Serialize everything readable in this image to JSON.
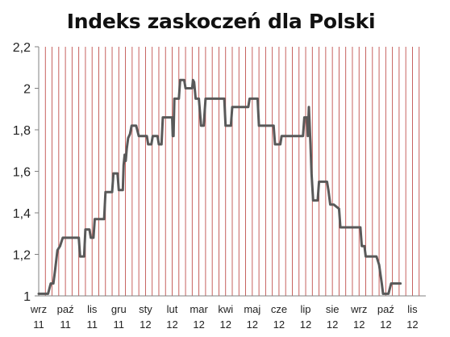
{
  "chart_data": {
    "type": "line",
    "title": "Indeks zaskoczeń dla Polski",
    "xlabel": "",
    "ylabel": "",
    "ylim": [
      1,
      2.2
    ],
    "y_ticks": [
      1,
      1.2,
      1.4,
      1.6,
      1.8,
      2,
      2.2
    ],
    "y_tick_labels": [
      "1",
      "1,2",
      "1,4",
      "1,6",
      "1,8",
      "2",
      "2,2"
    ],
    "x_tick_labels": [
      {
        "month": "wrz",
        "year": "11"
      },
      {
        "month": "paź",
        "year": "11"
      },
      {
        "month": "lis",
        "year": "11"
      },
      {
        "month": "gru",
        "year": "11"
      },
      {
        "month": "sty",
        "year": "12"
      },
      {
        "month": "lut",
        "year": "12"
      },
      {
        "month": "mar",
        "year": "12"
      },
      {
        "month": "kwi",
        "year": "12"
      },
      {
        "month": "maj",
        "year": "12"
      },
      {
        "month": "cze",
        "year": "12"
      },
      {
        "month": "lip",
        "year": "12"
      },
      {
        "month": "sie",
        "year": "12"
      },
      {
        "month": "wrz",
        "year": "12"
      },
      {
        "month": "paź",
        "year": "12"
      },
      {
        "month": "lis",
        "year": "12"
      }
    ],
    "x_range_months": [
      0,
      14.5
    ],
    "grid": "vertical",
    "colors": {
      "line": "#595959",
      "grid": "#c0504d",
      "axis": "#808080"
    },
    "series": [
      {
        "points": [
          [
            0.0,
            1.01
          ],
          [
            0.35,
            1.01
          ],
          [
            0.45,
            1.06
          ],
          [
            0.55,
            1.06
          ],
          [
            0.62,
            1.13
          ],
          [
            0.7,
            1.22
          ],
          [
            0.8,
            1.24
          ],
          [
            0.9,
            1.28
          ],
          [
            1.4,
            1.28
          ],
          [
            1.5,
            1.28
          ],
          [
            1.55,
            1.19
          ],
          [
            1.7,
            1.19
          ],
          [
            1.75,
            1.32
          ],
          [
            1.9,
            1.32
          ],
          [
            1.95,
            1.28
          ],
          [
            2.05,
            1.28
          ],
          [
            2.1,
            1.37
          ],
          [
            2.45,
            1.37
          ],
          [
            2.5,
            1.5
          ],
          [
            2.75,
            1.5
          ],
          [
            2.8,
            1.59
          ],
          [
            2.95,
            1.59
          ],
          [
            3.0,
            1.51
          ],
          [
            3.15,
            1.51
          ],
          [
            3.18,
            1.63
          ],
          [
            3.22,
            1.68
          ],
          [
            3.26,
            1.65
          ],
          [
            3.3,
            1.71
          ],
          [
            3.35,
            1.76
          ],
          [
            3.42,
            1.78
          ],
          [
            3.48,
            1.82
          ],
          [
            3.65,
            1.82
          ],
          [
            3.75,
            1.77
          ],
          [
            4.05,
            1.77
          ],
          [
            4.1,
            1.73
          ],
          [
            4.22,
            1.73
          ],
          [
            4.27,
            1.77
          ],
          [
            4.45,
            1.77
          ],
          [
            4.5,
            1.73
          ],
          [
            4.6,
            1.73
          ],
          [
            4.65,
            1.86
          ],
          [
            5.0,
            1.86
          ],
          [
            5.02,
            1.77
          ],
          [
            5.05,
            1.77
          ],
          [
            5.08,
            1.95
          ],
          [
            5.25,
            1.95
          ],
          [
            5.3,
            2.04
          ],
          [
            5.45,
            2.04
          ],
          [
            5.5,
            2.0
          ],
          [
            5.75,
            2.0
          ],
          [
            5.78,
            2.04
          ],
          [
            5.82,
            2.03
          ],
          [
            5.88,
            1.95
          ],
          [
            6.0,
            1.95
          ],
          [
            6.08,
            1.82
          ],
          [
            6.18,
            1.82
          ],
          [
            6.25,
            1.95
          ],
          [
            6.95,
            1.95
          ],
          [
            7.0,
            1.82
          ],
          [
            7.2,
            1.82
          ],
          [
            7.25,
            1.91
          ],
          [
            7.85,
            1.91
          ],
          [
            7.9,
            1.95
          ],
          [
            8.2,
            1.95
          ],
          [
            8.25,
            1.82
          ],
          [
            8.8,
            1.82
          ],
          [
            8.85,
            1.73
          ],
          [
            9.05,
            1.73
          ],
          [
            9.1,
            1.77
          ],
          [
            9.9,
            1.77
          ],
          [
            9.95,
            1.86
          ],
          [
            10.05,
            1.86
          ],
          [
            10.08,
            1.77
          ],
          [
            10.12,
            1.91
          ],
          [
            10.18,
            1.73
          ],
          [
            10.22,
            1.59
          ],
          [
            10.28,
            1.46
          ],
          [
            10.45,
            1.46
          ],
          [
            10.5,
            1.55
          ],
          [
            10.8,
            1.55
          ],
          [
            10.85,
            1.51
          ],
          [
            10.92,
            1.44
          ],
          [
            11.05,
            1.44
          ],
          [
            11.25,
            1.42
          ],
          [
            11.3,
            1.33
          ],
          [
            12.0,
            1.33
          ],
          [
            12.05,
            1.33
          ],
          [
            12.1,
            1.24
          ],
          [
            12.2,
            1.24
          ],
          [
            12.25,
            1.19
          ],
          [
            12.65,
            1.19
          ],
          [
            12.75,
            1.15
          ],
          [
            12.85,
            1.06
          ],
          [
            12.9,
            1.01
          ],
          [
            13.1,
            1.01
          ],
          [
            13.2,
            1.06
          ],
          [
            13.55,
            1.06
          ]
        ]
      }
    ]
  }
}
